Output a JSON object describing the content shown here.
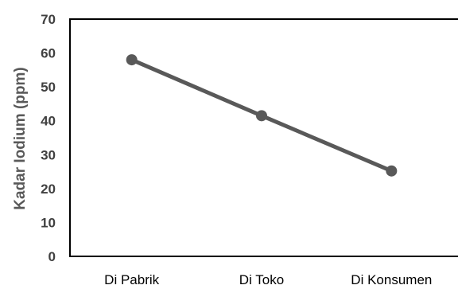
{
  "chart_data": {
    "type": "line",
    "categories": [
      "Di Pabrik",
      "Di Toko",
      "Di Konsumen"
    ],
    "series": [
      {
        "values": [
          58,
          41.5,
          25.2
        ]
      }
    ],
    "ylabel": "Kadar Iodium (ppm)",
    "xlabel": "",
    "ylim": [
      0,
      70
    ],
    "yticks": [
      "0",
      "10",
      "20",
      "30",
      "40",
      "50",
      "60",
      "70"
    ],
    "grid": false,
    "legend": "none"
  },
  "colors": {
    "series_line": "#595959",
    "marker": "#595959",
    "axis": "#000000"
  }
}
